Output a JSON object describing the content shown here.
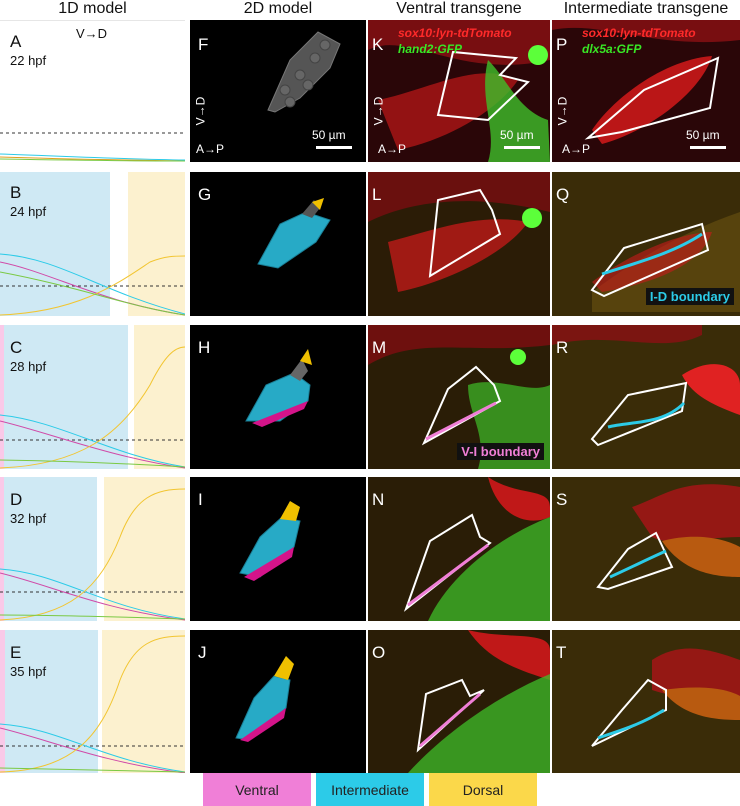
{
  "headers": {
    "col1": "1D model",
    "col2": "2D model",
    "col3": "Ventral transgene",
    "col4": "Intermediate transgene"
  },
  "rows": [
    {
      "m1": "A",
      "m2": "F",
      "m3": "K",
      "m4": "P",
      "stage": "22 hpf"
    },
    {
      "m1": "B",
      "m2": "G",
      "m3": "L",
      "m4": "Q",
      "stage": "24 hpf"
    },
    {
      "m1": "C",
      "m2": "H",
      "m3": "M",
      "m4": "R",
      "stage": "28 hpf"
    },
    {
      "m1": "D",
      "m2": "I",
      "m3": "N",
      "m4": "S",
      "stage": "32 hpf"
    },
    {
      "m1": "E",
      "m2": "J",
      "m3": "O",
      "m4": "T",
      "stage": "35 hpf"
    }
  ],
  "axis_vd": "V→D",
  "axis_ap": "A→P",
  "scale": "50 µm",
  "transgenes": {
    "reporter": "sox10:lyn-tdTomato",
    "ventral": "hand2:GFP",
    "intermediate": "dlx5a:GFP"
  },
  "boundaries": {
    "id": "I-D boundary",
    "vi": "V-I boundary"
  },
  "legend": {
    "ventral": "Ventral",
    "intermediate": "Intermediate",
    "dorsal": "Dorsal"
  },
  "colors": {
    "ventral": "#f07fd7",
    "intermediate": "#2ccbe8",
    "dorsal": "#fbd84a",
    "reporter_red": "#ff2a2a",
    "reporter_green": "#39e625"
  }
}
